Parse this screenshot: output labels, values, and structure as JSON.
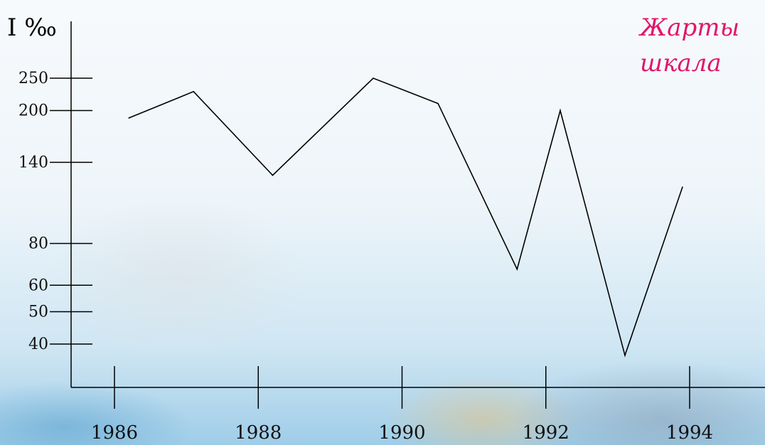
{
  "chart_data": {
    "type": "line",
    "title": "",
    "annotation_lines": [
      "Жарты",
      "шкала"
    ],
    "ylabel": "I ‰",
    "xlabel": "",
    "y_ticks": [
      40,
      50,
      60,
      80,
      140,
      200,
      250
    ],
    "x_ticks": [
      1986,
      1988,
      1990,
      1992,
      1994
    ],
    "x_tick_labels": [
      "1986",
      "1988",
      "1990",
      "1992",
      "1994"
    ],
    "scale": "half-logarithmic",
    "grid": false,
    "series": [
      {
        "x": [
          1986.2,
          1987.1,
          1988.2,
          1989.6,
          1990.5,
          1991.6,
          1992.2,
          1993.1,
          1993.9
        ],
        "values": [
          190,
          228,
          128,
          250,
          210,
          67,
          200,
          37,
          118
        ]
      }
    ],
    "colors": {
      "line": "#000000",
      "annotation": "#e0156b"
    }
  }
}
